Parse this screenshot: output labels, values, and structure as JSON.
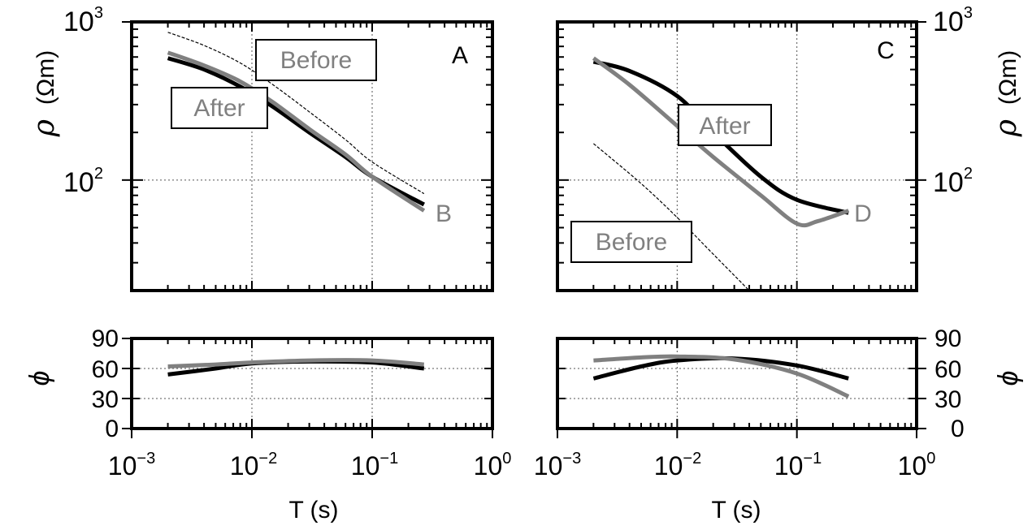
{
  "chart_data": [
    {
      "type": "line",
      "panel": "left-rho",
      "ylabel": "ρ (Ωm)",
      "xscale": "log",
      "yscale": "log",
      "xlim": [
        0.001,
        1
      ],
      "ylim": [
        20,
        1000
      ],
      "grid": true,
      "annotations": [
        "A",
        "B",
        "Before",
        "After"
      ],
      "series": [
        {
          "color": "#000000",
          "style": "thick",
          "x": [
            0.002,
            0.004,
            0.008,
            0.015,
            0.03,
            0.06,
            0.1,
            0.27
          ],
          "y": [
            590,
            500,
            390,
            290,
            200,
            140,
            105,
            70
          ]
        },
        {
          "color": "#808080",
          "style": "thick",
          "x": [
            0.002,
            0.004,
            0.008,
            0.015,
            0.03,
            0.06,
            0.1,
            0.27
          ],
          "y": [
            640,
            530,
            420,
            310,
            210,
            145,
            105,
            64
          ]
        },
        {
          "name": "Before",
          "color": "#000000",
          "style": "dashed-thin",
          "x": [
            0.002,
            0.004,
            0.008,
            0.015,
            0.03,
            0.06,
            0.1,
            0.27
          ],
          "y": [
            860,
            710,
            550,
            400,
            270,
            180,
            130,
            82
          ]
        }
      ]
    },
    {
      "type": "line",
      "panel": "left-phi",
      "ylabel": "ϕ",
      "xlabel": "T (s)",
      "xscale": "log",
      "xlim": [
        0.001,
        1
      ],
      "ylim": [
        0,
        90
      ],
      "yticks": [
        "0",
        "30",
        "60",
        "90"
      ],
      "xticks": [
        "10⁻³",
        "10⁻²",
        "10⁻¹",
        "10⁰"
      ],
      "grid": true,
      "series": [
        {
          "color": "#000000",
          "style": "thick",
          "x": [
            0.002,
            0.005,
            0.01,
            0.03,
            0.1,
            0.27
          ],
          "y": [
            54,
            60,
            65,
            67,
            66,
            60
          ]
        },
        {
          "color": "#808080",
          "style": "thick",
          "x": [
            0.002,
            0.005,
            0.01,
            0.03,
            0.1,
            0.27
          ],
          "y": [
            62,
            64,
            66,
            68,
            68,
            64
          ]
        }
      ]
    },
    {
      "type": "line",
      "panel": "right-rho",
      "ylabel": "ρ (Ωm)",
      "xscale": "log",
      "yscale": "log",
      "xlim": [
        0.001,
        1
      ],
      "ylim": [
        20,
        1000
      ],
      "grid": true,
      "annotations": [
        "C",
        "D",
        "Before",
        "After"
      ],
      "series": [
        {
          "color": "#000000",
          "style": "thick",
          "x": [
            0.002,
            0.004,
            0.01,
            0.02,
            0.05,
            0.1,
            0.27
          ],
          "y": [
            560,
            490,
            340,
            200,
            105,
            75,
            62
          ]
        },
        {
          "color": "#808080",
          "style": "thick",
          "x": [
            0.002,
            0.004,
            0.01,
            0.02,
            0.05,
            0.1,
            0.15,
            0.27
          ],
          "y": [
            590,
            400,
            220,
            140,
            80,
            53,
            55,
            64
          ]
        },
        {
          "name": "Before",
          "color": "#000000",
          "style": "dashed-thin",
          "x": [
            0.002,
            0.005,
            0.01,
            0.02,
            0.04
          ],
          "y": [
            170,
            95,
            58,
            34,
            20
          ]
        }
      ]
    },
    {
      "type": "line",
      "panel": "right-phi",
      "ylabel": "ϕ",
      "xlabel": "T (s)",
      "xscale": "log",
      "xlim": [
        0.001,
        1
      ],
      "ylim": [
        0,
        90
      ],
      "yticks": [
        "0",
        "30",
        "60",
        "90"
      ],
      "xticks": [
        "10⁻³",
        "10⁻²",
        "10⁻¹",
        "10⁰"
      ],
      "grid": true,
      "series": [
        {
          "color": "#000000",
          "style": "thick",
          "x": [
            0.002,
            0.005,
            0.01,
            0.03,
            0.1,
            0.27
          ],
          "y": [
            50,
            62,
            68,
            70,
            63,
            50
          ]
        },
        {
          "color": "#808080",
          "style": "thick",
          "x": [
            0.002,
            0.005,
            0.01,
            0.03,
            0.1,
            0.27
          ],
          "y": [
            68,
            71,
            72,
            69,
            55,
            32
          ]
        }
      ]
    }
  ],
  "labels": {
    "rho_symbol": "ρ",
    "rho_unit": "(Ωm)",
    "phi_symbol": "ϕ",
    "xlabel": "T (s)",
    "rho_tick_hi_base": "10",
    "rho_tick_hi_exp": "3",
    "rho_tick_lo_base": "10",
    "rho_tick_lo_exp": "2",
    "x_base": "10",
    "x_exps": [
      "−3",
      "−2",
      "−1",
      "0"
    ],
    "phi_ticks": [
      "0",
      "30",
      "60",
      "90"
    ],
    "panel_a": "A",
    "panel_b": "B",
    "panel_c": "C",
    "panel_d": "D",
    "before": "Before",
    "after": "After"
  },
  "colors": {
    "black": "#000000",
    "gray": "#808080",
    "grid": "#555555"
  }
}
